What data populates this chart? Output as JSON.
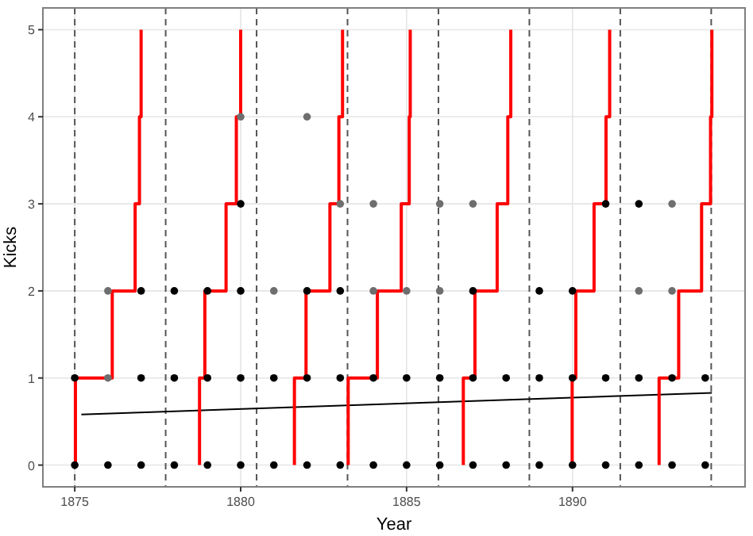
{
  "chart_data": {
    "type": "scatter",
    "xlabel": "Year",
    "ylabel": "Kicks",
    "xlim": [
      1874.04,
      1895.2
    ],
    "ylim": [
      -0.25,
      5.25
    ],
    "xticks": [
      1875,
      1880,
      1885,
      1890
    ],
    "yticks": [
      0,
      1,
      2,
      3,
      4,
      5
    ],
    "grid": true,
    "series": [
      {
        "color": "#000000",
        "x": [
          1875,
          1876,
          1877,
          1878,
          1879,
          1880,
          1881,
          1882,
          1883,
          1884,
          1885,
          1886,
          1887,
          1888,
          1889,
          1890,
          1891,
          1892,
          1893,
          1894,
          1875,
          1877,
          1878,
          1879,
          1880,
          1881,
          1882,
          1883,
          1884,
          1885,
          1886,
          1887,
          1888,
          1889,
          1890,
          1891,
          1892,
          1893,
          1894,
          1877,
          1878,
          1879,
          1880,
          1882,
          1883,
          1887,
          1889,
          1890,
          1880,
          1891,
          1892
        ],
        "values": [
          0,
          0,
          0,
          0,
          0,
          0,
          0,
          0,
          0,
          0,
          0,
          0,
          0,
          0,
          0,
          0,
          0,
          0,
          0,
          0,
          1,
          1,
          1,
          1,
          1,
          1,
          1,
          1,
          1,
          1,
          1,
          1,
          1,
          1,
          1,
          1,
          1,
          1,
          1,
          2,
          2,
          2,
          2,
          2,
          2,
          2,
          2,
          2,
          3,
          3,
          3
        ]
      },
      {
        "color": "#6e6e6e",
        "x": [
          1876,
          1876,
          1881,
          1884,
          1885,
          1886,
          1892,
          1893,
          1883,
          1884,
          1886,
          1887,
          1893,
          1880,
          1882
        ],
        "values": [
          1,
          2,
          2,
          2,
          2,
          2,
          2,
          2,
          3,
          3,
          3,
          3,
          3,
          4,
          4
        ]
      },
      {
        "type": "line",
        "color": "#000000",
        "x": [
          1875.2,
          1894.2
        ],
        "values": [
          0.58,
          0.83
        ]
      },
      {
        "type": "step",
        "color": "#ff0000",
        "x": [
          1875.02,
          1875.02,
          1876.13,
          1876.82,
          1876.95,
          1877.0
        ],
        "values": [
          0,
          1,
          2,
          3,
          4,
          5
        ]
      },
      {
        "type": "step",
        "color": "#ff0000",
        "x": [
          1878.76,
          1878.76,
          1878.92,
          1879.56,
          1879.87,
          1880.0
        ],
        "values": [
          0,
          1,
          2,
          3,
          4,
          5
        ]
      },
      {
        "type": "step",
        "color": "#ff0000",
        "x": [
          1881.62,
          1881.62,
          1881.97,
          1882.69,
          1882.96,
          1883.07
        ],
        "values": [
          0,
          1,
          2,
          3,
          4,
          5
        ]
      },
      {
        "type": "step",
        "color": "#ff0000",
        "x": [
          1883.24,
          1883.24,
          1884.12,
          1884.84,
          1885.08,
          1885.11
        ],
        "values": [
          0,
          1,
          2,
          3,
          4,
          5
        ]
      },
      {
        "type": "step",
        "color": "#ff0000",
        "x": [
          1886.71,
          1886.71,
          1887.06,
          1887.73,
          1888.05,
          1888.14
        ],
        "values": [
          0,
          1,
          2,
          3,
          4,
          5
        ]
      },
      {
        "type": "step",
        "color": "#ff0000",
        "x": [
          1889.99,
          1889.99,
          1890.1,
          1890.65,
          1891.01,
          1891.12
        ],
        "values": [
          0,
          1,
          2,
          3,
          4,
          5
        ]
      },
      {
        "type": "step",
        "color": "#ff0000",
        "x": [
          1892.61,
          1892.61,
          1893.2,
          1893.89,
          1894.16,
          1894.2
        ],
        "values": [
          0,
          1,
          2,
          3,
          4,
          5
        ]
      }
    ],
    "ref_lines": [
      {
        "axis": "x",
        "value": 1875,
        "color": "#555555",
        "line_style": "dashed"
      },
      {
        "axis": "x",
        "value": 1877.74,
        "color": "#555555",
        "line_style": "dashed"
      },
      {
        "axis": "x",
        "value": 1880.48,
        "color": "#555555",
        "line_style": "dashed"
      },
      {
        "axis": "x",
        "value": 1883.22,
        "color": "#555555",
        "line_style": "dashed"
      },
      {
        "axis": "x",
        "value": 1885.96,
        "color": "#555555",
        "line_style": "dashed"
      },
      {
        "axis": "x",
        "value": 1888.7,
        "color": "#555555",
        "line_style": "dashed"
      },
      {
        "axis": "x",
        "value": 1891.44,
        "color": "#555555",
        "line_style": "dashed"
      },
      {
        "axis": "x",
        "value": 1894.18,
        "color": "#555555",
        "line_style": "dashed"
      }
    ]
  }
}
